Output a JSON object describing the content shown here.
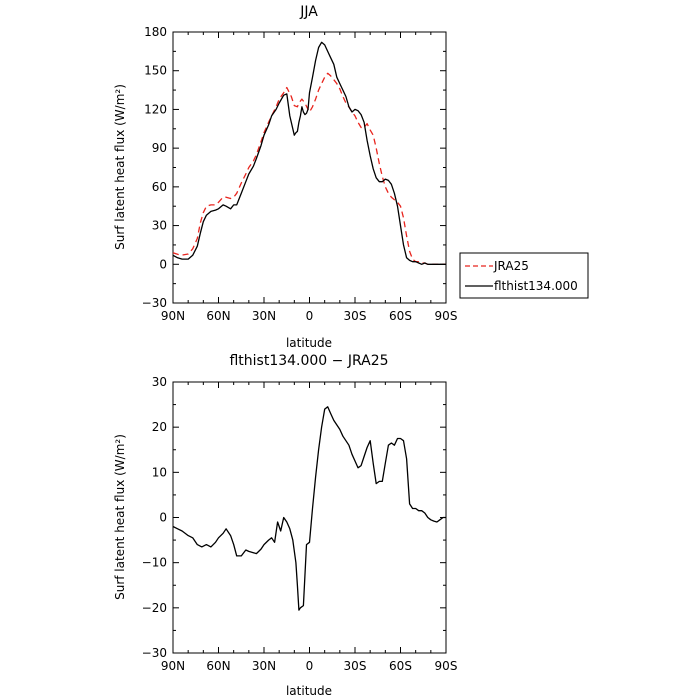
{
  "chart_data": [
    {
      "type": "line",
      "title": "JJA",
      "xlabel": "latitude",
      "ylabel": "Surf latent heat flux (W/m²)",
      "xlim": [
        -90,
        90
      ],
      "ylim": [
        -30,
        180
      ],
      "xticks": [
        -90,
        -60,
        -30,
        0,
        30,
        60,
        90
      ],
      "xtick_labels": [
        "90N",
        "60N",
        "30N",
        "0",
        "30S",
        "60S",
        "90S"
      ],
      "yticks": [
        -30,
        0,
        30,
        60,
        90,
        120,
        150,
        180
      ],
      "ytick_labels": [
        "−30",
        "0",
        "30",
        "60",
        "90",
        "120",
        "150",
        "180"
      ],
      "grid": false,
      "legend": "right",
      "series": [
        {
          "name": "JRA25",
          "color": "#e8251e",
          "dash": "dashed",
          "x": [
            -90,
            -85,
            -80,
            -77,
            -74,
            -72,
            -70,
            -68,
            -65,
            -62,
            -60,
            -57,
            -55,
            -52,
            -50,
            -48,
            -45,
            -42,
            -40,
            -37,
            -35,
            -32,
            -30,
            -27,
            -25,
            -22,
            -20,
            -17,
            -15,
            -12,
            -10,
            -8,
            -7,
            -5,
            -3,
            -1,
            0,
            2,
            4,
            6,
            8,
            10,
            12,
            14,
            16,
            18,
            20,
            22,
            24,
            26,
            28,
            30,
            32,
            34,
            36,
            38,
            40,
            42,
            44,
            46,
            48,
            50,
            52,
            54,
            56,
            58,
            60,
            62,
            64,
            66,
            68,
            70,
            72,
            74,
            76,
            78,
            80,
            82,
            84,
            86,
            88,
            90
          ],
          "y": [
            9,
            7,
            8,
            12,
            20,
            32,
            40,
            45,
            46,
            46,
            48,
            52,
            52,
            51,
            52,
            55,
            63,
            70,
            75,
            80,
            85,
            95,
            102,
            110,
            115,
            122,
            128,
            133,
            137,
            130,
            123,
            122,
            125,
            128,
            125,
            120,
            118,
            122,
            128,
            135,
            140,
            145,
            148,
            146,
            143,
            140,
            136,
            130,
            125,
            122,
            118,
            115,
            110,
            106,
            106,
            109,
            104,
            100,
            90,
            78,
            68,
            60,
            55,
            52,
            50,
            48,
            45,
            36,
            22,
            10,
            4,
            2,
            2,
            1,
            1,
            0,
            0,
            0,
            0,
            0,
            0,
            0
          ]
        },
        {
          "name": "flthist134.000",
          "color": "#000000",
          "dash": "solid",
          "x": [
            -90,
            -87,
            -84,
            -80,
            -77,
            -74,
            -72,
            -70,
            -68,
            -65,
            -62,
            -60,
            -57,
            -55,
            -52,
            -50,
            -48,
            -45,
            -42,
            -40,
            -37,
            -35,
            -32,
            -30,
            -27,
            -25,
            -22,
            -20,
            -17,
            -15,
            -13,
            -10,
            -9,
            -8,
            -7,
            -6,
            -5,
            -4,
            -3,
            -2,
            -1,
            0,
            2,
            4,
            6,
            8,
            10,
            12,
            14,
            16,
            18,
            20,
            22,
            24,
            26,
            28,
            30,
            32,
            34,
            36,
            38,
            40,
            42,
            44,
            46,
            48,
            50,
            52,
            54,
            56,
            58,
            60,
            62,
            64,
            66,
            68,
            70,
            72,
            74,
            76,
            78,
            80,
            82,
            84,
            86,
            88,
            90
          ],
          "y": [
            7,
            5,
            4,
            4,
            7,
            14,
            24,
            33,
            38,
            41,
            42,
            43,
            46,
            45,
            43,
            46,
            46,
            55,
            64,
            70,
            76,
            82,
            92,
            100,
            108,
            115,
            120,
            125,
            131,
            132,
            115,
            100,
            102,
            103,
            110,
            115,
            122,
            118,
            116,
            117,
            120,
            133,
            145,
            158,
            168,
            172,
            170,
            165,
            160,
            155,
            145,
            140,
            135,
            130,
            122,
            118,
            120,
            119,
            116,
            110,
            96,
            84,
            74,
            67,
            64,
            64,
            66,
            65,
            62,
            55,
            45,
            30,
            15,
            5,
            3,
            2,
            2,
            1,
            0,
            1,
            0,
            0,
            0,
            0,
            0,
            0,
            0
          ]
        }
      ]
    },
    {
      "type": "line",
      "title": "flthist134.000 − JRA25",
      "xlabel": "latitude",
      "ylabel": "Surf latent heat flux (W/m²)",
      "xlim": [
        -90,
        90
      ],
      "ylim": [
        -30,
        30
      ],
      "xticks": [
        -90,
        -60,
        -30,
        0,
        30,
        60,
        90
      ],
      "xtick_labels": [
        "90N",
        "60N",
        "30N",
        "0",
        "30S",
        "60S",
        "90S"
      ],
      "yticks": [
        -30,
        -20,
        -10,
        0,
        10,
        20,
        30
      ],
      "ytick_labels": [
        "−30",
        "−20",
        "−10",
        "0",
        "10",
        "20",
        "30"
      ],
      "grid": false,
      "series": [
        {
          "color": "#000000",
          "dash": "solid",
          "x": [
            -90,
            -87,
            -84,
            -80,
            -77,
            -74,
            -71,
            -68,
            -65,
            -62,
            -60,
            -57,
            -55,
            -52,
            -50,
            -48,
            -45,
            -42,
            -40,
            -37,
            -35,
            -32,
            -30,
            -27,
            -25,
            -23,
            -21,
            -19,
            -17,
            -15,
            -13,
            -11,
            -9,
            -8,
            -7,
            -6,
            -4,
            -2,
            0,
            2,
            4,
            6,
            8,
            10,
            12,
            14,
            16,
            18,
            20,
            22,
            24,
            26,
            28,
            30,
            32,
            34,
            36,
            38,
            40,
            42,
            44,
            46,
            48,
            50,
            52,
            54,
            56,
            58,
            60,
            62,
            64,
            66,
            68,
            70,
            72,
            74,
            76,
            78,
            80,
            82,
            84,
            86,
            88,
            90
          ],
          "y": [
            -2,
            -2.5,
            -3,
            -4,
            -4.5,
            -6,
            -6.5,
            -6,
            -6.5,
            -5.5,
            -4.5,
            -3.5,
            -2.5,
            -4,
            -6,
            -8.5,
            -8.5,
            -7.2,
            -7.5,
            -7.8,
            -8,
            -7,
            -6,
            -5,
            -4.5,
            -5.5,
            -1,
            -3,
            0,
            -1,
            -2.5,
            -5,
            -10,
            -15,
            -20.5,
            -20,
            -19.5,
            -6,
            -5.5,
            2,
            9,
            15,
            20,
            24,
            24.5,
            23,
            21.5,
            20.5,
            19.5,
            18,
            17,
            16,
            14,
            12.5,
            11,
            11.5,
            13.5,
            15.5,
            17,
            12,
            7.5,
            8,
            8,
            12,
            16,
            16.5,
            16,
            17.5,
            17.5,
            17,
            13,
            3,
            2,
            2,
            1.5,
            1.5,
            1,
            0,
            -0.5,
            -0.8,
            -1,
            -0.5,
            0,
            0
          ]
        }
      ]
    }
  ]
}
